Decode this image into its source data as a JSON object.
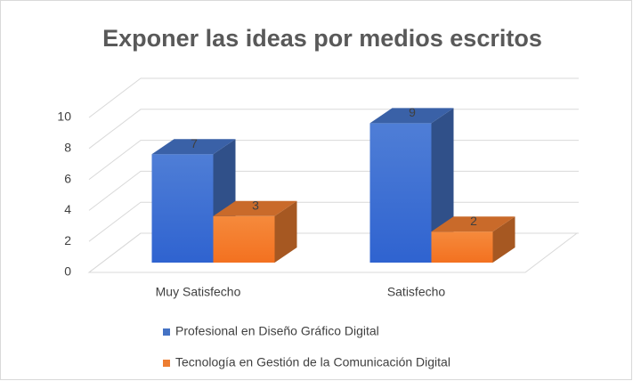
{
  "chart_data": {
    "type": "bar3d",
    "title": "Exponer las ideas por medios escritos",
    "categories": [
      "Muy Satisfecho",
      "Satisfecho"
    ],
    "series": [
      {
        "name": "Profesional en Diseño Gráfico Digital",
        "color": "#4472c4",
        "values": [
          7,
          9
        ]
      },
      {
        "name": "Tecnología en Gestión de la Comunicación Digital",
        "color": "#ed7d31",
        "values": [
          3,
          2
        ]
      }
    ],
    "ylim": [
      0,
      10
    ],
    "yticks": [
      0,
      2,
      4,
      6,
      8,
      10
    ],
    "grid": true,
    "legend": "bottom"
  }
}
